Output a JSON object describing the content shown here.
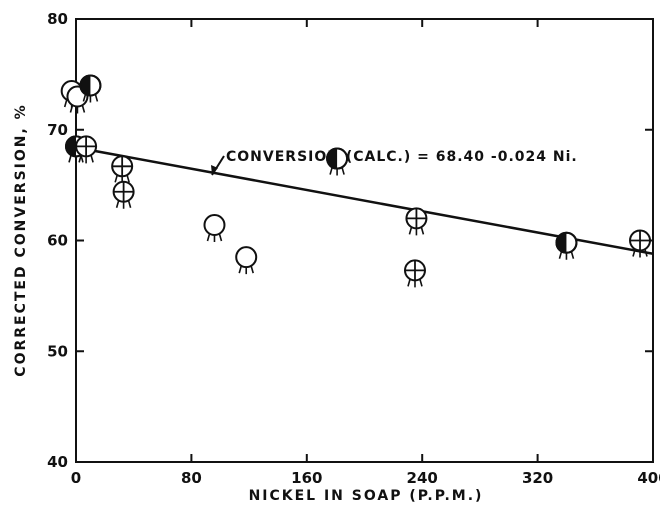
{
  "chart_data": {
    "type": "scatter",
    "xlabel": "NICKEL IN SOAP (P.P.M.)",
    "ylabel": "CORRECTED CONVERSION, %",
    "xlim": [
      0,
      400
    ],
    "ylim": [
      40,
      80
    ],
    "x_ticks": [
      0,
      80,
      160,
      240,
      320,
      400
    ],
    "y_ticks": [
      40,
      50,
      60,
      70,
      80
    ],
    "x_tick_labels": [
      "0",
      "80",
      "160",
      "240",
      "320",
      "400"
    ],
    "y_tick_labels": [
      "40",
      "50",
      "60",
      "70",
      "80"
    ],
    "grid": false,
    "points": [
      {
        "x": -3,
        "y": 73.5,
        "marker": "open"
      },
      {
        "x": 1,
        "y": 73.0,
        "marker": "open"
      },
      {
        "x": 10,
        "y": 74.0,
        "marker": "half-filled"
      },
      {
        "x": 0,
        "y": 68.5,
        "marker": "half-filled"
      },
      {
        "x": 7,
        "y": 68.5,
        "marker": "crossed"
      },
      {
        "x": 32,
        "y": 66.7,
        "marker": "crossed"
      },
      {
        "x": 33,
        "y": 64.4,
        "marker": "crossed"
      },
      {
        "x": 96,
        "y": 61.4,
        "marker": "open"
      },
      {
        "x": 118,
        "y": 58.5,
        "marker": "open"
      },
      {
        "x": 181,
        "y": 67.4,
        "marker": "half-filled"
      },
      {
        "x": 236,
        "y": 62.0,
        "marker": "crossed"
      },
      {
        "x": 235,
        "y": 57.3,
        "marker": "crossed"
      },
      {
        "x": 340,
        "y": 59.8,
        "marker": "half-filled"
      },
      {
        "x": 391,
        "y": 60.0,
        "marker": "crossed"
      }
    ],
    "fit_line": {
      "intercept": 68.4,
      "slope": -0.024,
      "x": [
        0,
        400
      ],
      "label": "CONVERSION (CALC.) = 68.40 -0.024 Ni."
    }
  }
}
